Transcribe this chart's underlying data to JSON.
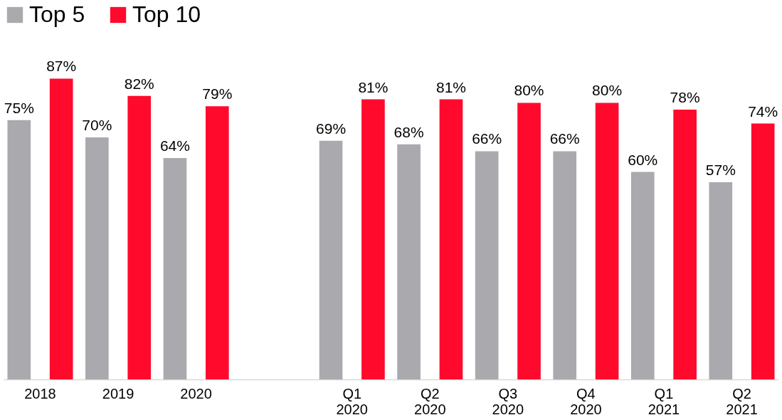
{
  "chart_data": {
    "type": "bar",
    "categories": [
      "2018",
      "2019",
      "2020",
      null,
      "Q1\n2020",
      "Q2\n2020",
      "Q3\n2020",
      "Q4\n2020",
      "Q1\n2021",
      "Q2\n2021"
    ],
    "series": [
      {
        "name": "Top 5",
        "color": "#a9a9ae",
        "values": [
          75,
          70,
          64,
          null,
          69,
          68,
          66,
          66,
          60,
          57
        ],
        "value_labels": [
          "75%",
          "70%",
          "64%",
          null,
          "69%",
          "68%",
          "66%",
          "66%",
          "60%",
          "57%"
        ]
      },
      {
        "name": "Top 10",
        "color": "#ff0a2d",
        "values": [
          87,
          82,
          79,
          null,
          81,
          81,
          80,
          80,
          78,
          74
        ],
        "value_labels": [
          "87%",
          "82%",
          "79%",
          null,
          "81%",
          "81%",
          "80%",
          "80%",
          "78%",
          "74%"
        ]
      }
    ],
    "legend": "top left",
    "grid": false
  }
}
